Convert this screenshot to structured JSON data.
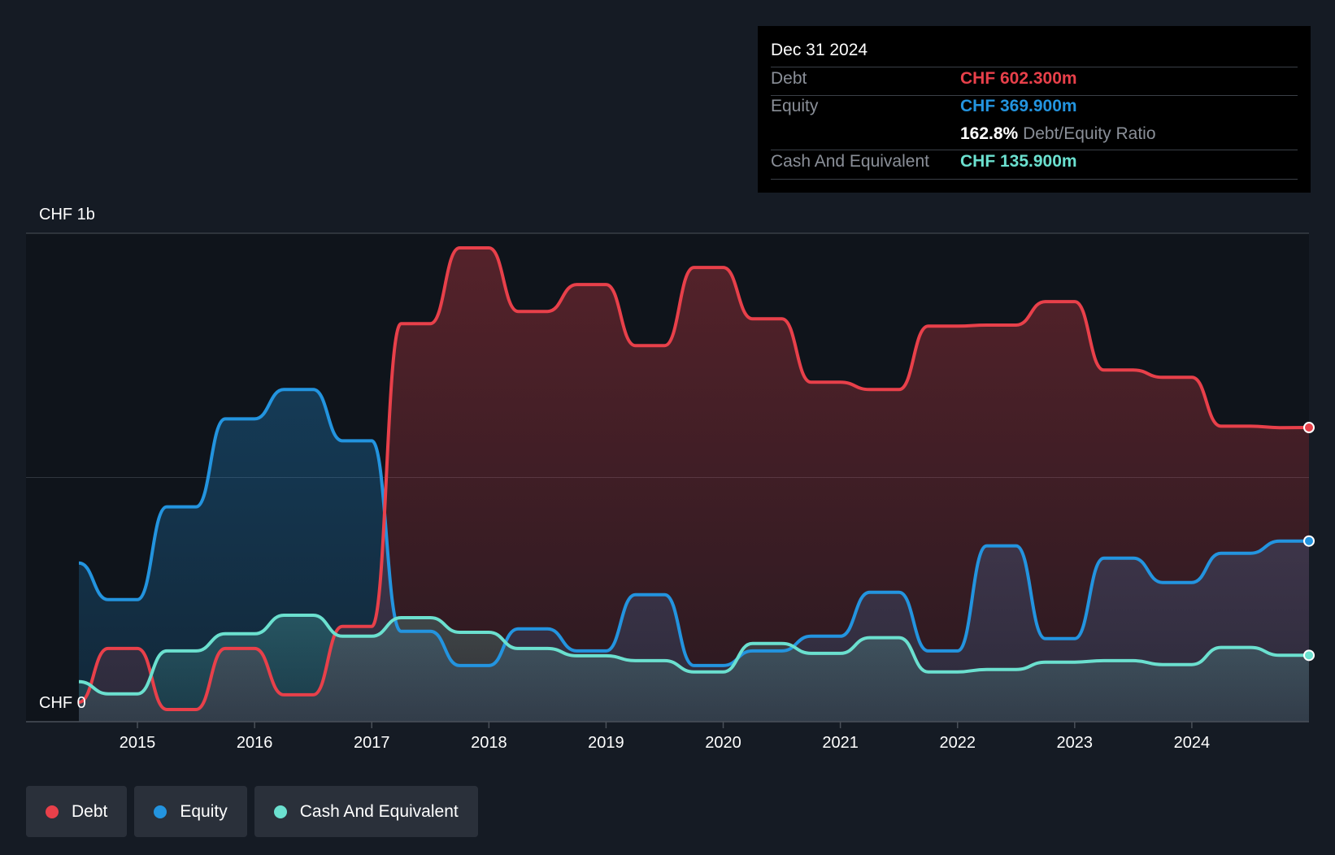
{
  "tooltip": {
    "date": "Dec 31 2024",
    "debt_label": "Debt",
    "debt_value": "CHF 602.300m",
    "equity_label": "Equity",
    "equity_value": "CHF 369.900m",
    "ratio_value": "162.8%",
    "ratio_label": "Debt/Equity Ratio",
    "cash_label": "Cash And Equivalent",
    "cash_value": "CHF 135.900m"
  },
  "legend": {
    "debt": "Debt",
    "equity": "Equity",
    "cash": "Cash And Equivalent"
  },
  "colors": {
    "debt": "#e8404a",
    "equity": "#2394df",
    "cash": "#6be0cf",
    "background": "#151b24"
  },
  "chart_data": {
    "type": "area",
    "y_axis_labels": {
      "max": "CHF 1b",
      "min": "CHF 0"
    },
    "ylim": [
      0,
      1000
    ],
    "xlim": [
      2014.5,
      2025.0
    ],
    "x_ticks": [
      2015,
      2016,
      2017,
      2018,
      2019,
      2020,
      2021,
      2022,
      2023,
      2024
    ],
    "grid": true,
    "legend_position": "bottom-left",
    "series": [
      {
        "name": "Debt",
        "x": [
          2014.5,
          2014.75,
          2015.0,
          2015.25,
          2015.5,
          2015.75,
          2016.0,
          2016.25,
          2016.5,
          2016.75,
          2017.0,
          2017.25,
          2017.5,
          2017.75,
          2018.0,
          2018.25,
          2018.5,
          2018.75,
          2019.0,
          2019.25,
          2019.5,
          2019.75,
          2020.0,
          2020.25,
          2020.5,
          2020.75,
          2021.0,
          2021.25,
          2021.5,
          2021.75,
          2022.0,
          2022.25,
          2022.5,
          2022.75,
          2023.0,
          2023.25,
          2023.5,
          2023.75,
          2024.0,
          2024.25,
          2024.5,
          2024.75,
          2025.0
        ],
        "values": [
          40,
          150,
          150,
          25,
          25,
          150,
          150,
          55,
          55,
          195,
          195,
          815,
          815,
          970,
          970,
          840,
          840,
          895,
          895,
          770,
          770,
          930,
          930,
          825,
          825,
          695,
          695,
          680,
          680,
          810,
          810,
          812,
          812,
          860,
          860,
          720,
          720,
          705,
          705,
          605,
          605,
          602,
          602.3
        ]
      },
      {
        "name": "Equity",
        "x": [
          2014.5,
          2014.75,
          2015.0,
          2015.25,
          2015.5,
          2015.75,
          2016.0,
          2016.25,
          2016.5,
          2016.75,
          2017.0,
          2017.25,
          2017.5,
          2017.75,
          2018.0,
          2018.25,
          2018.5,
          2018.75,
          2019.0,
          2019.25,
          2019.5,
          2019.75,
          2020.0,
          2020.25,
          2020.5,
          2020.75,
          2021.0,
          2021.25,
          2021.5,
          2021.75,
          2022.0,
          2022.25,
          2022.5,
          2022.75,
          2023.0,
          2023.25,
          2023.5,
          2023.75,
          2024.0,
          2024.25,
          2024.5,
          2024.75,
          2025.0
        ],
        "values": [
          325,
          250,
          250,
          440,
          440,
          620,
          620,
          680,
          680,
          575,
          575,
          185,
          185,
          115,
          115,
          190,
          190,
          145,
          145,
          260,
          260,
          115,
          115,
          145,
          145,
          175,
          175,
          265,
          265,
          145,
          145,
          360,
          360,
          170,
          170,
          335,
          335,
          285,
          285,
          345,
          345,
          369.9,
          369.9
        ]
      },
      {
        "name": "Cash And Equivalent",
        "x": [
          2014.5,
          2014.75,
          2015.0,
          2015.25,
          2015.5,
          2015.75,
          2016.0,
          2016.25,
          2016.5,
          2016.75,
          2017.0,
          2017.25,
          2017.5,
          2017.75,
          2018.0,
          2018.25,
          2018.5,
          2018.75,
          2019.0,
          2019.25,
          2019.5,
          2019.75,
          2020.0,
          2020.25,
          2020.5,
          2020.75,
          2021.0,
          2021.25,
          2021.5,
          2021.75,
          2022.0,
          2022.25,
          2022.5,
          2022.75,
          2023.0,
          2023.25,
          2023.5,
          2023.75,
          2024.0,
          2024.25,
          2024.5,
          2024.75,
          2025.0
        ],
        "values": [
          82,
          57,
          57,
          145,
          145,
          180,
          180,
          218,
          218,
          175,
          175,
          213,
          213,
          183,
          183,
          150,
          150,
          135,
          135,
          125,
          125,
          102,
          102,
          160,
          160,
          140,
          140,
          172,
          172,
          102,
          102,
          107,
          107,
          122,
          122,
          125,
          125,
          117,
          117,
          152,
          152,
          135.9,
          135.9
        ]
      }
    ]
  }
}
